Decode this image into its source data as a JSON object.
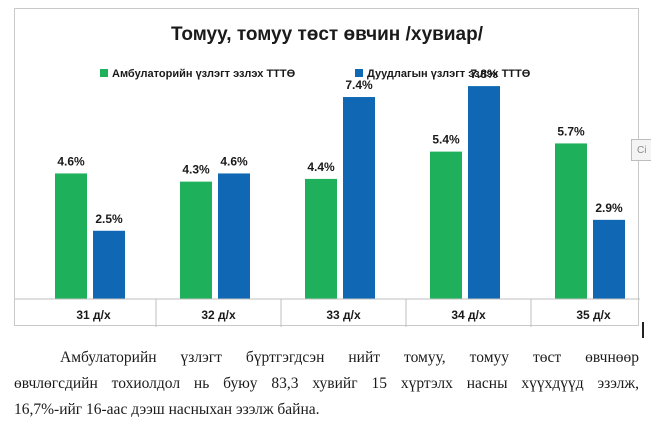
{
  "side_tab": "Ci",
  "caption": {
    "line1": "Амбулаторийн үзлэгт бүртгэгдсэн нийт томуу, томуу төст өвчнөөр",
    "line2": "өвчлөгсдийн  тохиолдол нь буюу 83,3 хувийг 15 хүртэлх насны хүүхдүүд эзэлж,",
    "line3": "16,7%-ийг 16-аас дээш насныхан эзэлж байна."
  },
  "chart_data": {
    "type": "bar",
    "title": "Томуу, томуу төст өвчин /хувиар/",
    "xlabel": "",
    "ylabel": "",
    "ylim": [
      0,
      8.5
    ],
    "grid": false,
    "legend_position": "top",
    "categories": [
      "31 д/х",
      "32 д/х",
      "33 д/х",
      "34 д/х",
      "35 д/х"
    ],
    "series": [
      {
        "name": "Амбулаторийн үзлэгт эзлэх ТТТӨ",
        "color": "#1eb05a",
        "values": [
          4.6,
          4.3,
          4.4,
          5.4,
          5.7
        ],
        "labels": [
          "4.6%",
          "4.3%",
          "4.4%",
          "5.4%",
          "5.7%"
        ]
      },
      {
        "name": "Дуудлагын үзлэгт эзлэх ТТТӨ",
        "color": "#1068b5",
        "values": [
          2.5,
          4.6,
          7.4,
          7.8,
          2.9
        ],
        "labels": [
          "2.5%",
          "4.6%",
          "7.4%",
          "7.8%",
          "2.9%"
        ]
      }
    ]
  }
}
